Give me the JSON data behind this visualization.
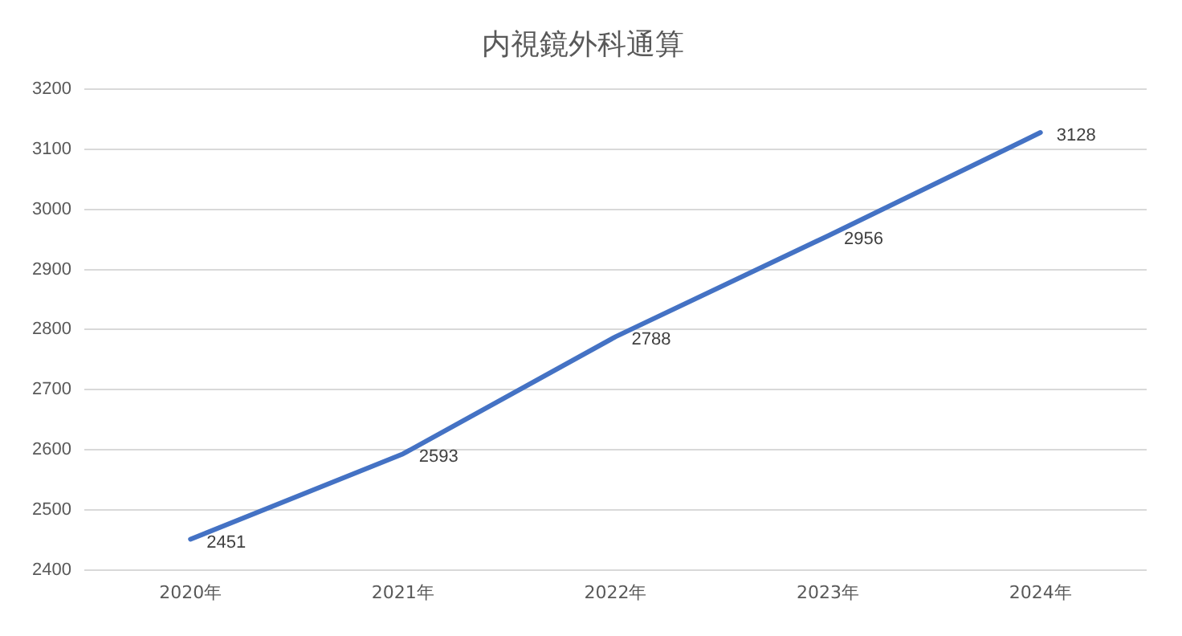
{
  "chart_data": {
    "type": "line",
    "title": "内視鏡外科通算",
    "categories": [
      "2020年",
      "2021年",
      "2022年",
      "2023年",
      "2024年"
    ],
    "series": [
      {
        "color": "#4472c4",
        "values": [
          2451,
          2593,
          2788,
          2956,
          3128
        ]
      }
    ],
    "ylim": [
      2400,
      3200
    ],
    "yticks": [
      2400,
      2500,
      2600,
      2700,
      2800,
      2900,
      3000,
      3100,
      3200
    ],
    "grid": "y",
    "legend": false,
    "marker": "none",
    "line_style": "solid",
    "data_labels": true
  }
}
